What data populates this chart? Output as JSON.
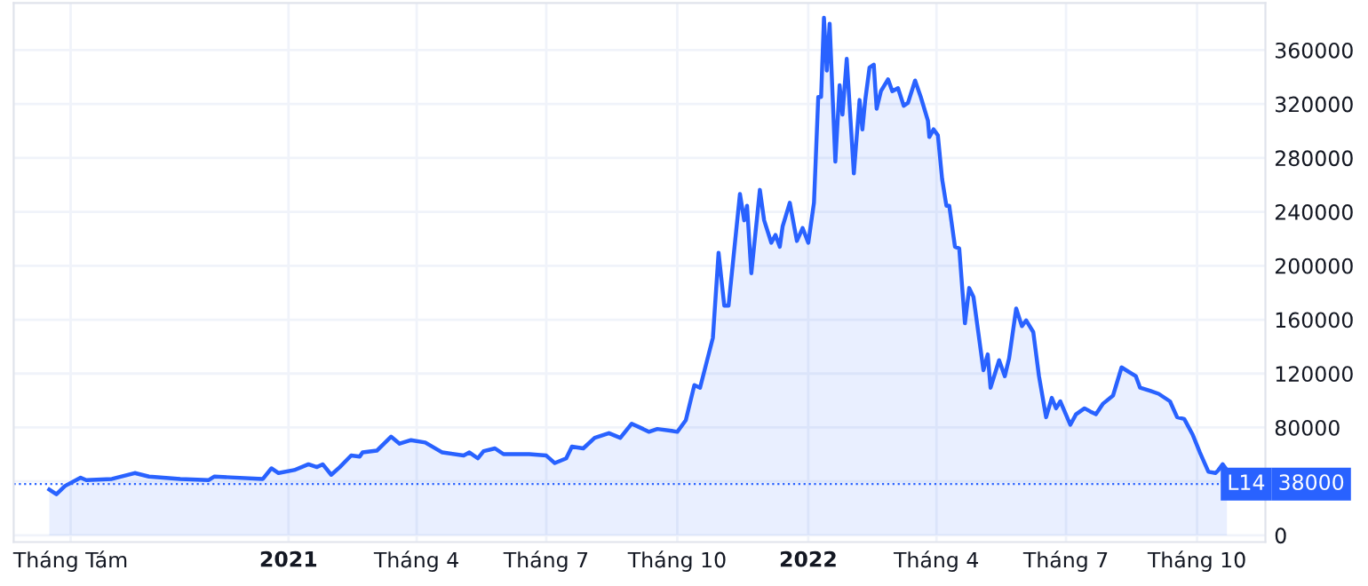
{
  "chart_data": {
    "type": "area",
    "xlim": [
      "2020-06-22",
      "2022-11-18"
    ],
    "ylim": [
      -5000,
      395000
    ],
    "xticks": [
      {
        "value": "2020-08-01",
        "label": "Tháng Tám"
      },
      {
        "value": "2021-01-01",
        "label": "2021"
      },
      {
        "value": "2021-04-01",
        "label": "Tháng 4"
      },
      {
        "value": "2021-07-01",
        "label": "Tháng 7"
      },
      {
        "value": "2021-10-01",
        "label": "Tháng 10"
      },
      {
        "value": "2022-01-01",
        "label": "2022"
      },
      {
        "value": "2022-04-01",
        "label": "Tháng 4"
      },
      {
        "value": "2022-07-01",
        "label": "Tháng 7"
      },
      {
        "value": "2022-10-01",
        "label": "Tháng 10"
      }
    ],
    "yticks": [
      0,
      {
        "value": 40000,
        "label": null
      },
      80000,
      120000,
      160000,
      200000,
      240000,
      280000,
      320000,
      360000
    ],
    "grid": true,
    "legend": false,
    "ref_lines": [
      {
        "axis": "y",
        "value": 38000,
        "label": "38000",
        "color": "#2962ff",
        "line_style": "dotted"
      }
    ],
    "series": [
      {
        "name": "L14",
        "color": "#2962ff",
        "x": [
          "2020-07-17",
          "2020-07-22",
          "2020-07-28",
          "2020-08-08",
          "2020-08-12",
          "2020-08-30",
          "2020-09-15",
          "2020-09-25",
          "2020-10-17",
          "2020-11-06",
          "2020-11-10",
          "2020-12-14",
          "2020-12-20",
          "2020-12-25",
          "2021-01-05",
          "2021-01-15",
          "2021-01-21",
          "2021-01-25",
          "2021-01-31",
          "2021-02-06",
          "2021-02-14",
          "2021-02-20",
          "2021-02-22",
          "2021-03-04",
          "2021-03-14",
          "2021-03-20",
          "2021-03-28",
          "2021-04-07",
          "2021-04-19",
          "2021-05-04",
          "2021-05-08",
          "2021-05-14",
          "2021-05-18",
          "2021-05-26",
          "2021-06-01",
          "2021-06-19",
          "2021-07-01",
          "2021-07-07",
          "2021-07-15",
          "2021-07-19",
          "2021-07-27",
          "2021-08-04",
          "2021-08-14",
          "2021-08-22",
          "2021-08-30",
          "2021-09-07",
          "2021-09-11",
          "2021-09-17",
          "2021-09-27",
          "2021-10-01",
          "2021-10-07",
          "2021-10-13",
          "2021-10-17",
          "2021-10-26",
          "2021-10-30",
          "2021-11-03",
          "2021-11-06",
          "2021-11-14",
          "2021-11-17",
          "2021-11-19",
          "2021-11-22",
          "2021-11-28",
          "2021-12-01",
          "2021-12-06",
          "2021-12-09",
          "2021-12-12",
          "2021-12-14",
          "2021-12-19",
          "2021-12-24",
          "2021-12-28",
          "2022-01-01",
          "2022-01-05",
          "2022-01-08",
          "2022-01-10",
          "2022-01-12",
          "2022-01-14",
          "2022-01-16",
          "2022-01-20",
          "2022-01-23",
          "2022-01-25",
          "2022-01-28",
          "2022-02-02",
          "2022-02-06",
          "2022-02-08",
          "2022-02-10",
          "2022-02-13",
          "2022-02-16",
          "2022-02-18",
          "2022-02-21",
          "2022-02-26",
          "2022-03-01",
          "2022-03-05",
          "2022-03-09",
          "2022-03-12",
          "2022-03-17",
          "2022-03-21",
          "2022-03-26",
          "2022-03-27",
          "2022-03-30",
          "2022-04-02",
          "2022-04-05",
          "2022-04-08",
          "2022-04-10",
          "2022-04-14",
          "2022-04-17",
          "2022-04-21",
          "2022-04-24",
          "2022-04-27",
          "2022-05-04",
          "2022-05-07",
          "2022-05-09",
          "2022-05-15",
          "2022-05-19",
          "2022-05-22",
          "2022-05-27",
          "2022-05-31",
          "2022-06-03",
          "2022-06-08",
          "2022-06-12",
          "2022-06-17",
          "2022-06-21",
          "2022-06-24",
          "2022-06-27",
          "2022-07-04",
          "2022-07-08",
          "2022-07-14",
          "2022-07-18",
          "2022-07-22",
          "2022-07-27",
          "2022-08-03",
          "2022-08-09",
          "2022-08-19",
          "2022-08-22",
          "2022-08-29",
          "2022-09-04",
          "2022-09-12",
          "2022-09-17",
          "2022-09-22",
          "2022-09-28",
          "2022-10-03",
          "2022-10-09",
          "2022-10-14",
          "2022-10-16",
          "2022-10-19",
          "2022-10-22"
        ],
        "values": [
          34000,
          30500,
          36600,
          42800,
          41000,
          41800,
          46200,
          43600,
          41800,
          41000,
          43600,
          41800,
          49700,
          46200,
          48400,
          52700,
          50600,
          52700,
          44900,
          50600,
          59200,
          58400,
          61500,
          62800,
          73200,
          68000,
          70600,
          68900,
          61500,
          59200,
          61500,
          57100,
          62400,
          64500,
          60200,
          60200,
          59200,
          53600,
          57100,
          65800,
          64500,
          72300,
          75800,
          72300,
          82800,
          78900,
          76800,
          78900,
          77500,
          76800,
          85400,
          111500,
          109500,
          146500,
          209600,
          170400,
          170400,
          253300,
          233700,
          244500,
          194500,
          256300,
          233700,
          217100,
          222800,
          214100,
          229300,
          246800,
          218400,
          228000,
          217100,
          246800,
          325200,
          325200,
          384000,
          344800,
          379600,
          277200,
          333900,
          312200,
          353500,
          268500,
          323000,
          301200,
          323000,
          347000,
          349200,
          316500,
          329500,
          338300,
          329500,
          331800,
          318700,
          320800,
          337400,
          325200,
          307700,
          295500,
          301200,
          296800,
          264200,
          244500,
          244500,
          214100,
          212800,
          157300,
          183500,
          176900,
          122500,
          134300,
          109500,
          129900,
          118100,
          131200,
          168300,
          155200,
          159500,
          150800,
          118100,
          87600,
          102000,
          94200,
          99400,
          82000,
          89800,
          94200,
          91900,
          89800,
          97700,
          103700,
          124600,
          118100,
          109500,
          107200,
          105000,
          99400,
          87600,
          86300,
          74500,
          61500,
          47100,
          46200,
          48400,
          52700,
          48400
        ]
      }
    ]
  }
}
